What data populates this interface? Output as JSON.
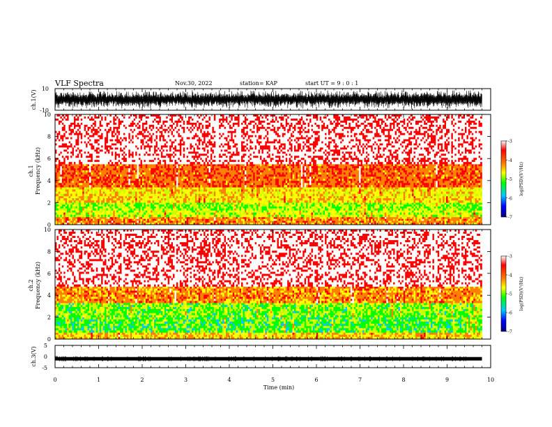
{
  "header": {
    "title": "VLF Spectra",
    "date": "Nov.30, 2022",
    "station": "station= KAP",
    "start": "start  UT =   9 : 0  : 1"
  },
  "colors": {
    "colormap": [
      "#000080",
      "#0000ff",
      "#00c8ff",
      "#00ff00",
      "#c8ff00",
      "#ffff00",
      "#ff8000",
      "#ff0000",
      "#ffffff"
    ],
    "waveform": "#000000",
    "axis": "#000000"
  },
  "chart_data": [
    {
      "type": "line",
      "name": "ch1-waveform",
      "ylabel": "ch.1(V)",
      "yticklabels": [
        "10",
        "-10"
      ],
      "ylim": [
        -10,
        10
      ],
      "xlim": [
        0,
        10
      ],
      "note_value": "dense oscillation between about -9 and +9 V over 0–9.8 min"
    },
    {
      "type": "heatmap",
      "name": "ch1-spectrogram",
      "ylabel": "ch.1\nFrequency  (kHz)",
      "ylabel_line1": "ch.1",
      "ylabel_line2": "Frequency  (kHz)",
      "yticks": [
        0,
        2,
        4,
        6,
        8,
        10
      ],
      "ylim": [
        0,
        10
      ],
      "xlim": [
        0,
        10
      ],
      "data_end_min": 9.8,
      "colorbar": {
        "label": "log(PSD)(V²/Hz)",
        "ticks": [
          -3,
          -4,
          -5,
          -6,
          -7
        ],
        "range": [
          -7,
          -3
        ]
      },
      "bands": [
        {
          "fmin": 0.0,
          "fmax": 0.7,
          "level": -4.0
        },
        {
          "fmin": 0.7,
          "fmax": 1.3,
          "level": -4.6
        },
        {
          "fmin": 1.3,
          "fmax": 2.0,
          "level": -4.8
        },
        {
          "fmin": 2.0,
          "fmax": 2.6,
          "level": -4.3
        },
        {
          "fmin": 2.6,
          "fmax": 3.4,
          "level": -4.4
        },
        {
          "fmin": 3.4,
          "fmax": 5.5,
          "level": -3.8
        },
        {
          "fmin": 5.5,
          "fmax": 10.0,
          "level": -3.2
        }
      ]
    },
    {
      "type": "heatmap",
      "name": "ch2-spectrogram",
      "ylabel": "ch.2\nFrequency  (kHz)",
      "ylabel_line1": "ch.2",
      "ylabel_line2": "Frequency  (kHz)",
      "yticks": [
        0,
        2,
        4,
        6,
        8,
        10
      ],
      "ylim": [
        0,
        10
      ],
      "xlim": [
        0,
        10
      ],
      "data_end_min": 9.8,
      "colorbar": {
        "label": "log(PSD)(V²/Hz)",
        "ticks": [
          -3,
          -4,
          -5,
          -6,
          -7
        ],
        "range": [
          -7,
          -3
        ]
      },
      "bands": [
        {
          "fmin": 0.0,
          "fmax": 0.6,
          "level": -4.3
        },
        {
          "fmin": 0.6,
          "fmax": 2.0,
          "level": -5.0
        },
        {
          "fmin": 2.0,
          "fmax": 3.3,
          "level": -4.9
        },
        {
          "fmin": 3.3,
          "fmax": 4.8,
          "level": -4.0
        },
        {
          "fmin": 4.8,
          "fmax": 10.0,
          "level": -3.2
        }
      ]
    },
    {
      "type": "line",
      "name": "ch3-waveform",
      "ylabel": "ch.3(V)",
      "yticklabels": [
        "5",
        "0",
        "-5"
      ],
      "ylim": [
        -5,
        5
      ],
      "xlim": [
        0,
        10
      ],
      "level": -1
    }
  ],
  "xaxis": {
    "label": "Time  (min)",
    "ticks": [
      0,
      1,
      2,
      3,
      4,
      5,
      6,
      7,
      8,
      9,
      10
    ]
  }
}
